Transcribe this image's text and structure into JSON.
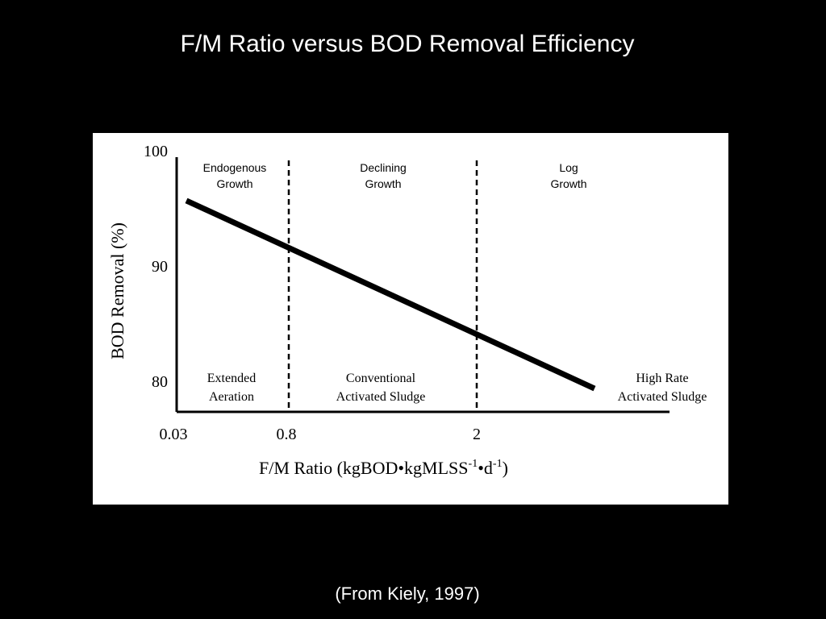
{
  "slide": {
    "title": "F/M Ratio versus BOD Removal Efficiency",
    "source": "(From Kiely, 1997)"
  },
  "colors": {
    "background": "#000000",
    "panel": "#ffffff",
    "ink": "#000000",
    "slide_text": "#ffffff"
  },
  "chart_data": {
    "type": "line",
    "title": "",
    "xlabel": "F/M Ratio (kgBOD•kgMLSS",
    "xlabel_parts": {
      "main": "F/M Ratio (kgBOD•kgMLSS",
      "sup1": "-1",
      "mid": "•d",
      "sup2": "-1",
      "end": ")"
    },
    "ylabel": "BOD Removal (%)",
    "ylim": [
      78,
      100
    ],
    "grid": false,
    "legend": "none",
    "x_ticks": [
      {
        "label": "0.03",
        "value": 0.03
      },
      {
        "label": "0.8",
        "value": 0.8
      },
      {
        "label": "2",
        "value": 2
      }
    ],
    "y_ticks": [
      {
        "label": "100",
        "value": 100
      },
      {
        "label": "90",
        "value": 90
      },
      {
        "label": "80",
        "value": 80
      }
    ],
    "dividers": [
      0.8,
      2
    ],
    "series": [
      {
        "x": [
          0.03,
          4
        ],
        "y": [
          95.6,
          79.3
        ]
      }
    ],
    "regions": [
      {
        "x_from": 0.03,
        "x_to": 0.8,
        "growth": [
          "Endogenous",
          "Growth"
        ],
        "process": [
          "Extended",
          "Aeration"
        ]
      },
      {
        "x_from": 0.8,
        "x_to": 2,
        "growth": [
          "Declining",
          "Growth"
        ],
        "process": [
          "Conventional",
          "Activated Sludge"
        ]
      },
      {
        "x_from": 2,
        "x_to": 4,
        "growth": [
          "Log",
          "Growth"
        ],
        "process": [
          "High Rate",
          "Activated Sludge"
        ]
      }
    ]
  }
}
